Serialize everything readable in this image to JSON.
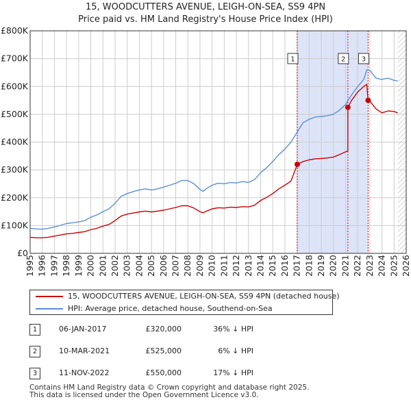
{
  "title": {
    "line1": "15, WOODCUTTERS AVENUE, LEIGH-ON-SEA, SS9 4PN",
    "line2": "Price paid vs. HM Land Registry's House Price Index (HPI)"
  },
  "colors": {
    "property": "#cc0000",
    "hpi": "#5b8ed6",
    "shade": "#dde4f8",
    "grid": "#cccccc",
    "marker_line": "#cc0000",
    "hatch": "#999999"
  },
  "chart_data": {
    "type": "line",
    "title": "15, WOODCUTTERS AVENUE, LEIGH-ON-SEA, SS9 4PN — Price paid vs. HM Land Registry's House Price Index (HPI)",
    "xlabel": "",
    "ylabel": "",
    "xlim": [
      1995,
      2026
    ],
    "ylim": [
      0,
      800000
    ],
    "y_ticks": [
      {
        "value": 0,
        "label": "£0"
      },
      {
        "value": 100000,
        "label": "£100K"
      },
      {
        "value": 200000,
        "label": "£200K"
      },
      {
        "value": 300000,
        "label": "£300K"
      },
      {
        "value": 400000,
        "label": "£400K"
      },
      {
        "value": 500000,
        "label": "£500K"
      },
      {
        "value": 600000,
        "label": "£600K"
      },
      {
        "value": 700000,
        "label": "£700K"
      },
      {
        "value": 800000,
        "label": "£800K"
      }
    ],
    "x_ticks": [
      "1995",
      "1996",
      "1997",
      "1998",
      "1999",
      "2000",
      "2001",
      "2002",
      "2003",
      "2004",
      "2005",
      "2006",
      "2007",
      "2008",
      "2009",
      "2010",
      "2011",
      "2012",
      "2013",
      "2014",
      "2015",
      "2016",
      "2017",
      "2018",
      "2019",
      "2020",
      "2021",
      "2022",
      "2023",
      "2024",
      "2025",
      "2026"
    ],
    "grid": true,
    "future_data_from": 2025.3,
    "series": [
      {
        "name": "HPI: Average price, detached house, Southend-on-Sea",
        "points": [
          [
            1995.0,
            90000
          ],
          [
            1995.5,
            88000
          ],
          [
            1996.0,
            87000
          ],
          [
            1996.5,
            90000
          ],
          [
            1997.0,
            95000
          ],
          [
            1997.5,
            101000
          ],
          [
            1998.0,
            107000
          ],
          [
            1998.5,
            110000
          ],
          [
            1999.0,
            113000
          ],
          [
            1999.5,
            118000
          ],
          [
            2000.0,
            130000
          ],
          [
            2000.5,
            138000
          ],
          [
            2001.0,
            150000
          ],
          [
            2001.5,
            160000
          ],
          [
            2002.0,
            180000
          ],
          [
            2002.5,
            205000
          ],
          [
            2003.0,
            215000
          ],
          [
            2003.5,
            222000
          ],
          [
            2004.0,
            228000
          ],
          [
            2004.5,
            232000
          ],
          [
            2005.0,
            228000
          ],
          [
            2005.5,
            232000
          ],
          [
            2006.0,
            238000
          ],
          [
            2006.5,
            245000
          ],
          [
            2007.0,
            252000
          ],
          [
            2007.5,
            262000
          ],
          [
            2008.0,
            262000
          ],
          [
            2008.5,
            250000
          ],
          [
            2009.0,
            230000
          ],
          [
            2009.25,
            223000
          ],
          [
            2009.5,
            232000
          ],
          [
            2010.0,
            245000
          ],
          [
            2010.5,
            252000
          ],
          [
            2011.0,
            250000
          ],
          [
            2011.5,
            255000
          ],
          [
            2012.0,
            253000
          ],
          [
            2012.5,
            258000
          ],
          [
            2013.0,
            255000
          ],
          [
            2013.5,
            265000
          ],
          [
            2014.0,
            290000
          ],
          [
            2014.5,
            308000
          ],
          [
            2015.0,
            330000
          ],
          [
            2015.5,
            355000
          ],
          [
            2016.0,
            375000
          ],
          [
            2016.5,
            400000
          ],
          [
            2017.0,
            435000
          ],
          [
            2017.5,
            470000
          ],
          [
            2018.0,
            482000
          ],
          [
            2018.5,
            490000
          ],
          [
            2019.0,
            492000
          ],
          [
            2019.5,
            495000
          ],
          [
            2020.0,
            500000
          ],
          [
            2020.5,
            515000
          ],
          [
            2021.0,
            535000
          ],
          [
            2021.5,
            570000
          ],
          [
            2022.0,
            600000
          ],
          [
            2022.5,
            625000
          ],
          [
            2022.75,
            660000
          ],
          [
            2023.0,
            658000
          ],
          [
            2023.5,
            630000
          ],
          [
            2024.0,
            625000
          ],
          [
            2024.5,
            630000
          ],
          [
            2025.0,
            622000
          ],
          [
            2025.3,
            620000
          ]
        ]
      },
      {
        "name": "15, WOODCUTTERS AVENUE, LEIGH-ON-SEA, SS9 4PN (detached house)",
        "points": [
          [
            1995.0,
            58000
          ],
          [
            1995.5,
            56000
          ],
          [
            1996.0,
            56000
          ],
          [
            1996.5,
            58000
          ],
          [
            1997.0,
            62000
          ],
          [
            1997.5,
            66000
          ],
          [
            1998.0,
            70000
          ],
          [
            1998.5,
            72000
          ],
          [
            1999.0,
            75000
          ],
          [
            1999.5,
            78000
          ],
          [
            2000.0,
            85000
          ],
          [
            2000.5,
            90000
          ],
          [
            2001.0,
            98000
          ],
          [
            2001.5,
            104000
          ],
          [
            2002.0,
            118000
          ],
          [
            2002.5,
            134000
          ],
          [
            2003.0,
            141000
          ],
          [
            2003.5,
            145000
          ],
          [
            2004.0,
            149000
          ],
          [
            2004.5,
            152000
          ],
          [
            2005.0,
            149000
          ],
          [
            2005.5,
            152000
          ],
          [
            2006.0,
            155000
          ],
          [
            2006.5,
            160000
          ],
          [
            2007.0,
            165000
          ],
          [
            2007.5,
            171000
          ],
          [
            2008.0,
            171000
          ],
          [
            2008.5,
            163000
          ],
          [
            2009.0,
            150000
          ],
          [
            2009.25,
            146000
          ],
          [
            2009.5,
            151000
          ],
          [
            2010.0,
            160000
          ],
          [
            2010.5,
            164000
          ],
          [
            2011.0,
            163000
          ],
          [
            2011.5,
            166000
          ],
          [
            2012.0,
            165000
          ],
          [
            2012.5,
            168000
          ],
          [
            2013.0,
            167000
          ],
          [
            2013.5,
            173000
          ],
          [
            2014.0,
            190000
          ],
          [
            2014.5,
            201000
          ],
          [
            2015.0,
            215000
          ],
          [
            2015.5,
            232000
          ],
          [
            2016.0,
            245000
          ],
          [
            2016.5,
            260000
          ],
          [
            2017.02,
            320000
          ],
          [
            2017.5,
            330000
          ],
          [
            2018.0,
            336000
          ],
          [
            2018.5,
            340000
          ],
          [
            2019.0,
            341000
          ],
          [
            2019.5,
            343000
          ],
          [
            2020.0,
            346000
          ],
          [
            2020.5,
            355000
          ],
          [
            2021.0,
            365000
          ],
          [
            2021.19,
            368000
          ],
          [
            2021.19,
            525000
          ],
          [
            2021.5,
            550000
          ],
          [
            2022.0,
            580000
          ],
          [
            2022.5,
            600000
          ],
          [
            2022.75,
            608000
          ],
          [
            2022.86,
            550000
          ],
          [
            2023.0,
            548000
          ],
          [
            2023.5,
            520000
          ],
          [
            2024.0,
            505000
          ],
          [
            2024.5,
            512000
          ],
          [
            2025.0,
            510000
          ],
          [
            2025.3,
            505000
          ]
        ]
      }
    ],
    "sales": [
      {
        "id": "1",
        "x": 2017.02,
        "y": 320000
      },
      {
        "id": "2",
        "x": 2021.19,
        "y": 525000
      },
      {
        "id": "3",
        "x": 2022.86,
        "y": 550000
      }
    ]
  },
  "legend": {
    "property_label": "15, WOODCUTTERS AVENUE, LEIGH-ON-SEA, SS9 4PN (detached house)",
    "hpi_label": "HPI: Average price, detached house, Southend-on-Sea"
  },
  "sales_table": [
    {
      "num": "1",
      "date": "06-JAN-2017",
      "price": "£320,000",
      "hpi": "36% ↓ HPI"
    },
    {
      "num": "2",
      "date": "10-MAR-2021",
      "price": "£525,000",
      "hpi": "6% ↓ HPI"
    },
    {
      "num": "3",
      "date": "11-NOV-2022",
      "price": "£550,000",
      "hpi": "17% ↓ HPI"
    }
  ],
  "footer": {
    "line1": "Contains HM Land Registry data © Crown copyright and database right 2025.",
    "line2": "This data is licensed under the Open Government Licence v3.0."
  }
}
